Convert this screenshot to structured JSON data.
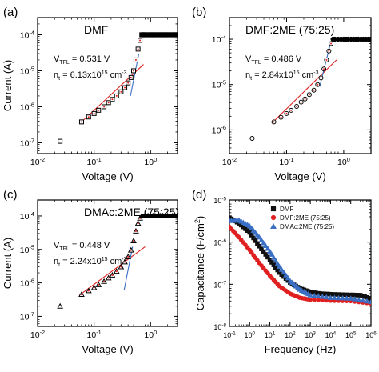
{
  "chart_data": [
    {
      "panel_label": "(a)",
      "type": "scatter",
      "x_scale": "log",
      "y_scale": "log",
      "xlim": [
        0.01,
        3
      ],
      "ylim": [
        5e-08,
        0.0003
      ],
      "xlabel": "Voltage (V)",
      "ylabel": "Current (A)",
      "x_ticks": [
        {
          "v": 0.01,
          "label": "10-2"
        },
        {
          "v": 0.1,
          "label": "10-1"
        },
        {
          "v": 1,
          "label": "100"
        }
      ],
      "y_ticks": [
        {
          "v": 1e-07,
          "label": "10-7"
        },
        {
          "v": 1e-06,
          "label": "10-6"
        },
        {
          "v": 1e-05,
          "label": "10-5"
        },
        {
          "v": 0.0001,
          "label": "10-4"
        }
      ],
      "sample_label": "DMF",
      "vtfl": {
        "prefix": "V",
        "sub": "TFL",
        "value": "= 0.531 V"
      },
      "nt": {
        "prefix": "n",
        "sub": "t",
        "value": "= 6.13x10",
        "exp": "15",
        "unit": "cm",
        "unit_exp": "-3"
      },
      "marker": "square",
      "points": [
        [
          0.025,
          1.1e-07
        ],
        [
          0.06,
          3.8e-07
        ],
        [
          0.08,
          5.2e-07
        ],
        [
          0.1,
          6.5e-07
        ],
        [
          0.12,
          8e-07
        ],
        [
          0.15,
          1e-06
        ],
        [
          0.18,
          1.3e-06
        ],
        [
          0.21,
          1.6e-06
        ],
        [
          0.25,
          2e-06
        ],
        [
          0.3,
          2.6e-06
        ],
        [
          0.35,
          3.4e-06
        ],
        [
          0.4,
          4.6e-06
        ],
        [
          0.45,
          6.5e-06
        ],
        [
          0.5,
          1e-05
        ],
        [
          0.55,
          2e-05
        ],
        [
          0.6,
          4e-05
        ],
        [
          0.65,
          7e-05
        ],
        [
          0.7,
          0.0001
        ],
        [
          0.75,
          0.0001
        ],
        [
          0.8,
          0.0001
        ],
        [
          0.9,
          0.0001
        ],
        [
          1.0,
          0.0001
        ],
        [
          1.1,
          0.0001
        ],
        [
          1.2,
          0.0001
        ],
        [
          1.35,
          0.0001
        ],
        [
          1.5,
          0.0001
        ],
        [
          1.65,
          0.0001
        ],
        [
          1.8,
          0.0001
        ],
        [
          2.0,
          0.0001
        ],
        [
          2.2,
          0.0001
        ],
        [
          2.45,
          0.0001
        ],
        [
          2.7,
          0.0001
        ],
        [
          2.95,
          0.0001
        ]
      ],
      "fit_lines": [
        {
          "color": "#e02020",
          "from": [
            0.06,
            3.8e-07
          ],
          "to": [
            0.75,
            1.5e-05
          ]
        },
        {
          "color": "#3a6fc4",
          "from": [
            0.44,
            2e-06
          ],
          "to": [
            0.62,
            3e-05
          ]
        }
      ]
    },
    {
      "panel_label": "(b)",
      "type": "scatter",
      "x_scale": "log",
      "y_scale": "log",
      "xlim": [
        0.01,
        3
      ],
      "ylim": [
        3e-07,
        0.0003
      ],
      "xlabel": "Voltage (V)",
      "ylabel": "",
      "x_ticks": [
        {
          "v": 0.01,
          "label": "10-2"
        },
        {
          "v": 0.1,
          "label": "10-1"
        },
        {
          "v": 1,
          "label": "100"
        }
      ],
      "y_ticks": [
        {
          "v": 1e-06,
          "label": "10-6"
        },
        {
          "v": 1e-05,
          "label": "10-5"
        },
        {
          "v": 0.0001,
          "label": "10-4"
        }
      ],
      "sample_label": "DMF:2ME (75:25)",
      "vtfl": {
        "prefix": "V",
        "sub": "TFL",
        "value": "= 0.486 V"
      },
      "nt": {
        "prefix": "n",
        "sub": "t",
        "value": "= 2.84x10",
        "exp": "15",
        "unit": "cm",
        "unit_exp": "-3"
      },
      "marker": "circle",
      "points": [
        [
          0.025,
          6.5e-07
        ],
        [
          0.06,
          1.5e-06
        ],
        [
          0.08,
          1.9e-06
        ],
        [
          0.1,
          2.3e-06
        ],
        [
          0.12,
          2.7e-06
        ],
        [
          0.15,
          3.3e-06
        ],
        [
          0.18,
          4.1e-06
        ],
        [
          0.21,
          4.8e-06
        ],
        [
          0.25,
          6e-06
        ],
        [
          0.3,
          7.5e-06
        ],
        [
          0.35,
          1e-05
        ],
        [
          0.4,
          1.4e-05
        ],
        [
          0.45,
          2.2e-05
        ],
        [
          0.5,
          3.5e-05
        ],
        [
          0.55,
          5.5e-05
        ],
        [
          0.6,
          8e-05
        ],
        [
          0.65,
          0.0001
        ],
        [
          0.7,
          0.0001
        ],
        [
          0.8,
          0.0001
        ],
        [
          0.9,
          0.0001
        ],
        [
          1.0,
          0.0001
        ],
        [
          1.1,
          0.0001
        ],
        [
          1.2,
          0.0001
        ],
        [
          1.35,
          0.0001
        ],
        [
          1.5,
          0.0001
        ],
        [
          1.65,
          0.0001
        ],
        [
          1.8,
          0.0001
        ],
        [
          2.0,
          0.0001
        ],
        [
          2.2,
          0.0001
        ],
        [
          2.45,
          0.0001
        ],
        [
          2.7,
          0.0001
        ],
        [
          2.95,
          0.0001
        ]
      ],
      "fit_lines": [
        {
          "color": "#e02020",
          "from": [
            0.055,
            1.4e-06
          ],
          "to": [
            0.75,
            3.5e-05
          ]
        },
        {
          "color": "#3a6fc4",
          "from": [
            0.38,
            9e-06
          ],
          "to": [
            0.57,
            7e-05
          ]
        }
      ]
    },
    {
      "panel_label": "(c)",
      "type": "scatter",
      "x_scale": "log",
      "y_scale": "log",
      "xlim": [
        0.01,
        3
      ],
      "ylim": [
        5e-08,
        0.0003
      ],
      "xlabel": "Voltage (V)",
      "ylabel": "Current (A)",
      "x_ticks": [
        {
          "v": 0.01,
          "label": "10-2"
        },
        {
          "v": 0.1,
          "label": "10-1"
        },
        {
          "v": 1,
          "label": "100"
        }
      ],
      "y_ticks": [
        {
          "v": 1e-07,
          "label": "10-7"
        },
        {
          "v": 1e-06,
          "label": "10-6"
        },
        {
          "v": 1e-05,
          "label": "10-5"
        },
        {
          "v": 0.0001,
          "label": "10-4"
        }
      ],
      "sample_label": "DMAc:2ME (75:25)",
      "vtfl": {
        "prefix": "V",
        "sub": "TFL",
        "value": "= 0.448 V"
      },
      "nt": {
        "prefix": "n",
        "sub": "t",
        "value": "= 2.24x10",
        "exp": "15",
        "unit": "cm",
        "unit_exp": "-3"
      },
      "marker": "triangle",
      "points": [
        [
          0.025,
          2e-07
        ],
        [
          0.06,
          4.5e-07
        ],
        [
          0.08,
          5.8e-07
        ],
        [
          0.1,
          7.2e-07
        ],
        [
          0.12,
          8.8e-07
        ],
        [
          0.15,
          1.1e-06
        ],
        [
          0.18,
          1.4e-06
        ],
        [
          0.21,
          1.7e-06
        ],
        [
          0.25,
          2.2e-06
        ],
        [
          0.3,
          3e-06
        ],
        [
          0.35,
          4.2e-06
        ],
        [
          0.4,
          6e-06
        ],
        [
          0.45,
          9.5e-06
        ],
        [
          0.5,
          1.8e-05
        ],
        [
          0.55,
          3.5e-05
        ],
        [
          0.6,
          6e-05
        ],
        [
          0.65,
          8.5e-05
        ],
        [
          0.7,
          0.0001
        ],
        [
          0.8,
          0.0001
        ],
        [
          0.9,
          0.0001
        ],
        [
          1.0,
          0.0001
        ],
        [
          1.1,
          0.0001
        ],
        [
          1.2,
          0.0001
        ],
        [
          1.35,
          0.0001
        ],
        [
          1.5,
          0.0001
        ],
        [
          1.65,
          0.0001
        ],
        [
          1.8,
          0.0001
        ],
        [
          2.0,
          0.0001
        ],
        [
          2.2,
          0.0001
        ],
        [
          2.45,
          0.0001
        ],
        [
          2.7,
          0.0001
        ],
        [
          2.95,
          0.0001
        ]
      ],
      "fit_lines": [
        {
          "color": "#e02020",
          "from": [
            0.055,
            4.3e-07
          ],
          "to": [
            0.8,
            1.2e-05
          ]
        },
        {
          "color": "#3a6fc4",
          "from": [
            0.34,
            6e-07
          ],
          "to": [
            0.48,
            1.2e-05
          ]
        }
      ]
    },
    {
      "panel_label": "(d)",
      "type": "scatter",
      "x_scale": "log",
      "y_scale": "log",
      "xlim": [
        0.1,
        1000000
      ],
      "ylim": [
        1e-08,
        1e-05
      ],
      "xlabel": "Frequency (Hz)",
      "ylabel": "Capacitance (F/cm2)",
      "ylabel_main": "Capacitance (F/cm",
      "ylabel_sup": "2",
      "ylabel_close": ")",
      "x_ticks": [
        {
          "v": 0.1,
          "label": "10-1"
        },
        {
          "v": 1,
          "label": "100"
        },
        {
          "v": 10,
          "label": "101"
        },
        {
          "v": 100,
          "label": "102"
        },
        {
          "v": 1000,
          "label": "103"
        },
        {
          "v": 10000,
          "label": "104"
        },
        {
          "v": 100000,
          "label": "105"
        },
        {
          "v": 1000000,
          "label": "106"
        }
      ],
      "y_ticks": [
        {
          "v": 1e-08,
          "label": "10-8"
        },
        {
          "v": 1e-07,
          "label": "10-7"
        },
        {
          "v": 1e-06,
          "label": "10-6"
        },
        {
          "v": 1e-05,
          "label": "10-5"
        }
      ],
      "legend_position": "top-right",
      "series": [
        {
          "name": "DMF",
          "color": "#111111",
          "marker": "square",
          "points": [
            [
              0.1,
              3.8e-06
            ],
            [
              0.3,
              2.8e-06
            ],
            [
              1,
              1.7e-06
            ],
            [
              3,
              8e-07
            ],
            [
              10,
              3.8e-07
            ],
            [
              30,
              1.9e-07
            ],
            [
              100,
              1.1e-07
            ],
            [
              300,
              8e-08
            ],
            [
              1000,
              6.5e-08
            ],
            [
              3000,
              6e-08
            ],
            [
              10000,
              5.8e-08
            ],
            [
              100000,
              5.6e-08
            ],
            [
              300000,
              5.5e-08
            ],
            [
              1000000,
              4.5e-08
            ]
          ]
        },
        {
          "name": "DMF:2ME (75:25)",
          "color": "#e02020",
          "marker": "circle",
          "points": [
            [
              0.1,
              2.3e-06
            ],
            [
              0.3,
              1.3e-06
            ],
            [
              1,
              6.5e-07
            ],
            [
              3,
              3.2e-07
            ],
            [
              10,
              1.6e-07
            ],
            [
              30,
              9e-08
            ],
            [
              100,
              6e-08
            ],
            [
              300,
              4.8e-08
            ],
            [
              1000,
              4.3e-08
            ],
            [
              10000,
              4.1e-08
            ],
            [
              100000,
              4e-08
            ],
            [
              1000000,
              3.5e-08
            ]
          ]
        },
        {
          "name": "DMAc:2ME (75:25)",
          "color": "#3a6fc4",
          "marker": "triangle",
          "points": [
            [
              0.1,
              3.2e-06
            ],
            [
              0.3,
              3.3e-06
            ],
            [
              1,
              2.4e-06
            ],
            [
              3,
              1.3e-06
            ],
            [
              10,
              6e-07
            ],
            [
              30,
              2.6e-07
            ],
            [
              100,
              1.2e-07
            ],
            [
              300,
              7.5e-08
            ],
            [
              1000,
              5.5e-08
            ],
            [
              10000,
              4.8e-08
            ],
            [
              100000,
              4.6e-08
            ],
            [
              1000000,
              3.8e-08
            ]
          ]
        }
      ]
    }
  ]
}
